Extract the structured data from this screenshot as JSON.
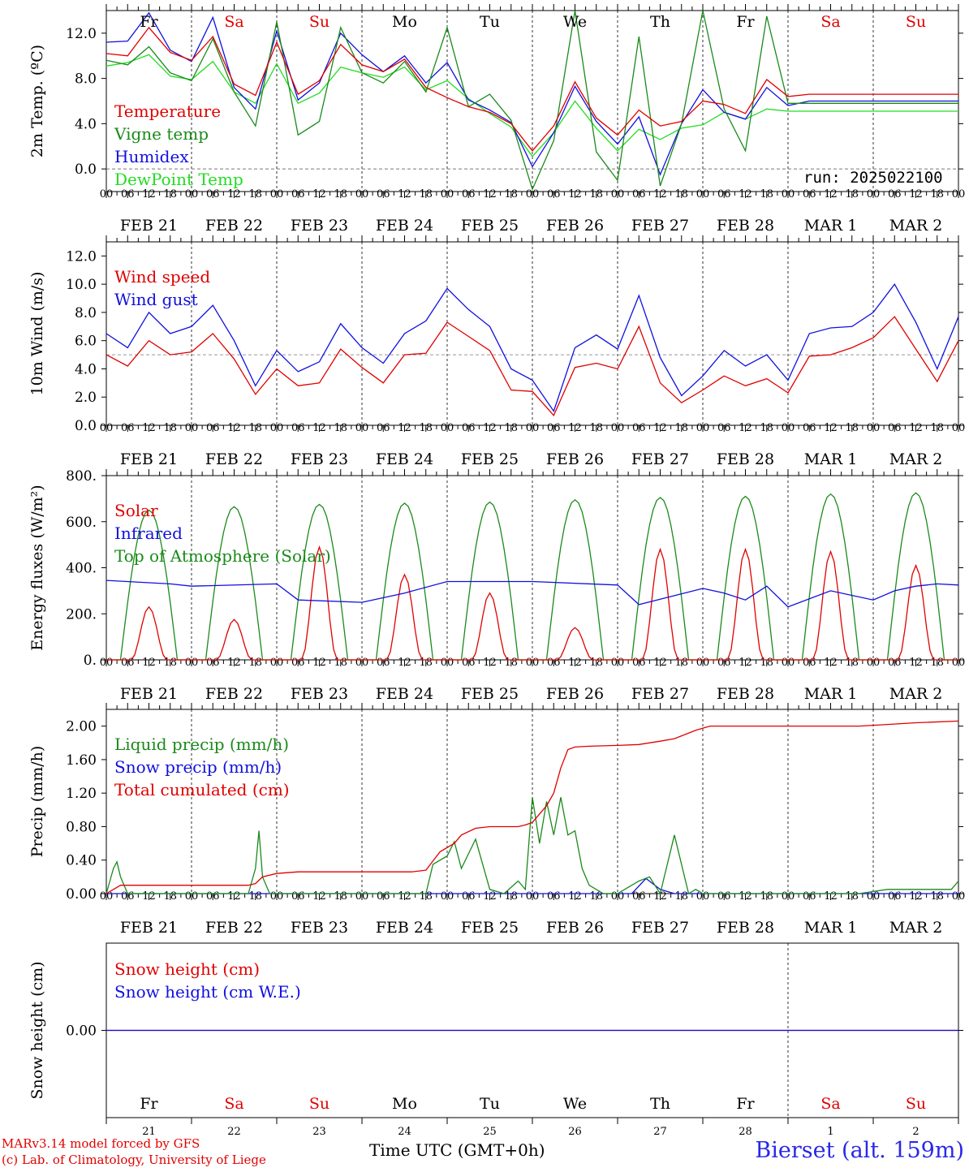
{
  "run_label": "run: 2025022100",
  "credit_line1": "MARv3.14 model forced by GFS",
  "credit_line2": "(c) Lab. of Climatology, University of Liege",
  "station": "Bierset (alt. 159m)",
  "x_axis_title": "Time UTC (GMT+0h)",
  "colors": {
    "red": "#e00000",
    "green": "#1a8a1a",
    "blue": "#1010e0",
    "lightgreen": "#22dd22",
    "grid": "#000000"
  },
  "hour_ticks": [
    "00",
    "06",
    "12",
    "18"
  ],
  "dates": [
    "FEB 21",
    "FEB 22",
    "FEB 23",
    "FEB 24",
    "FEB 25",
    "FEB 26",
    "FEB 27",
    "FEB 28",
    "MAR  1",
    "MAR  2"
  ],
  "weekdays": [
    {
      "label": "Fr",
      "color": "#000000"
    },
    {
      "label": "Sa",
      "color": "#e00000"
    },
    {
      "label": "Su",
      "color": "#e00000"
    },
    {
      "label": "Mo",
      "color": "#000000"
    },
    {
      "label": "Tu",
      "color": "#000000"
    },
    {
      "label": "We",
      "color": "#000000"
    },
    {
      "label": "Th",
      "color": "#000000"
    },
    {
      "label": "Fr",
      "color": "#000000"
    },
    {
      "label": "Sa",
      "color": "#e00000"
    },
    {
      "label": "Su",
      "color": "#e00000"
    }
  ],
  "day_numbers": [
    "21",
    "22",
    "23",
    "24",
    "25",
    "26",
    "27",
    "28",
    "1",
    "2"
  ],
  "chart_data": [
    {
      "id": "temp",
      "type": "line",
      "ylabel": "2m Temp. (ºC)",
      "ylim": [
        -2,
        14
      ],
      "ticks": [
        {
          "v": 0,
          "l": "0.0"
        },
        {
          "v": 4,
          "l": "4.0"
        },
        {
          "v": 8,
          "l": "8.0"
        },
        {
          "v": 12,
          "l": "12.0"
        }
      ],
      "ref_line": 0,
      "x_hours": [
        0,
        6,
        12,
        18,
        24,
        30,
        36,
        42,
        48,
        54,
        60,
        66,
        72,
        78,
        84,
        90,
        96,
        102,
        108,
        114,
        120,
        126,
        132,
        138,
        144,
        150,
        156,
        162,
        168,
        174,
        180,
        186,
        192,
        198,
        204,
        210,
        216,
        222,
        228,
        234,
        240
      ],
      "series": [
        {
          "name": "Temperature",
          "color": "#e00000",
          "values": [
            10.2,
            10.0,
            12.5,
            10.3,
            9.6,
            11.7,
            7.5,
            6.5,
            11.2,
            6.6,
            7.8,
            11.0,
            9.2,
            8.6,
            9.7,
            7.2,
            6.3,
            5.5,
            5.0,
            4.0,
            1.6,
            3.8,
            7.7,
            4.5,
            3.0,
            5.2,
            3.8,
            4.2,
            6.0,
            5.7,
            4.9,
            7.9,
            6.4,
            6.6,
            6.6,
            6.6,
            6.6,
            6.6,
            6.6,
            6.6,
            6.6
          ]
        },
        {
          "name": "Vigne temp",
          "color": "#1a8a1a",
          "values": [
            9.6,
            9.2,
            10.8,
            8.5,
            7.8,
            11.5,
            6.8,
            3.8,
            13.0,
            3.0,
            4.2,
            12.5,
            8.5,
            7.6,
            9.5,
            6.8,
            12.5,
            5.5,
            6.6,
            4.3,
            -1.8,
            2.5,
            14.0,
            1.5,
            -1.0,
            11.7,
            -1.5,
            4.0,
            14.0,
            5.3,
            1.6,
            13.5,
            5.8,
            5.8,
            5.8,
            5.8,
            5.8,
            5.8,
            5.8,
            5.8,
            5.8
          ]
        },
        {
          "name": "Humidex",
          "color": "#1010e0",
          "values": [
            11.2,
            11.3,
            13.8,
            10.5,
            9.5,
            13.4,
            7.2,
            5.3,
            12.2,
            6.1,
            7.6,
            12.0,
            10.1,
            8.6,
            10.0,
            7.6,
            9.4,
            6.1,
            5.2,
            4.1,
            0.2,
            3.2,
            7.3,
            4.2,
            2.2,
            4.6,
            -0.5,
            4.0,
            7.0,
            5.0,
            4.4,
            7.2,
            5.6,
            6.0,
            6.0,
            6.0,
            6.0,
            6.0,
            6.0,
            6.0,
            6.0
          ]
        },
        {
          "name": "DewPoint Temp",
          "color": "#22dd22",
          "values": [
            9.1,
            9.4,
            10.1,
            8.2,
            7.9,
            9.5,
            6.8,
            5.8,
            9.3,
            5.8,
            6.7,
            9.0,
            8.5,
            8.1,
            9.0,
            7.0,
            7.8,
            6.2,
            4.9,
            3.7,
            1.1,
            3.2,
            6.0,
            3.6,
            1.6,
            3.5,
            2.6,
            3.6,
            3.9,
            5.0,
            4.4,
            5.3,
            5.1,
            5.1,
            5.1,
            5.1,
            5.1,
            5.1,
            5.1,
            5.1,
            5.1
          ]
        }
      ]
    },
    {
      "id": "wind",
      "type": "line",
      "ylabel": "10m Wind (m/s)",
      "ylim": [
        0,
        13
      ],
      "ticks": [
        {
          "v": 0,
          "l": "0.0"
        },
        {
          "v": 2,
          "l": "2.0"
        },
        {
          "v": 4,
          "l": "4.0"
        },
        {
          "v": 6,
          "l": "6.0"
        },
        {
          "v": 8,
          "l": "8.0"
        },
        {
          "v": 10,
          "l": "10.0"
        },
        {
          "v": 12,
          "l": "12.0"
        }
      ],
      "ref_line": 5,
      "x_hours": [
        0,
        6,
        12,
        18,
        24,
        30,
        36,
        42,
        48,
        54,
        60,
        66,
        72,
        78,
        84,
        90,
        96,
        102,
        108,
        114,
        120,
        126,
        132,
        138,
        144,
        150,
        156,
        162,
        168,
        174,
        180,
        186,
        192,
        198,
        204,
        210,
        216,
        222,
        228,
        234,
        240
      ],
      "series": [
        {
          "name": "Wind speed",
          "color": "#e00000",
          "values": [
            5.0,
            4.2,
            6.0,
            5.0,
            5.2,
            6.5,
            4.7,
            2.2,
            4.0,
            2.8,
            3.0,
            5.4,
            4.1,
            3.0,
            5.0,
            5.1,
            7.3,
            6.3,
            5.3,
            2.5,
            2.4,
            0.7,
            4.1,
            4.4,
            4.0,
            7.0,
            3.0,
            1.6,
            2.5,
            3.5,
            2.8,
            3.3,
            2.3,
            4.9,
            5.0,
            5.5,
            6.2,
            7.7,
            5.4,
            3.1,
            6.0
          ]
        },
        {
          "name": "Wind gust",
          "color": "#1010e0",
          "values": [
            6.5,
            5.5,
            8.0,
            6.5,
            7.0,
            8.5,
            6.0,
            2.8,
            5.3,
            3.8,
            4.5,
            7.2,
            5.5,
            4.4,
            6.5,
            7.4,
            9.7,
            8.2,
            7.0,
            4.0,
            3.2,
            1.0,
            5.5,
            6.4,
            5.4,
            9.2,
            4.8,
            2.1,
            3.5,
            5.3,
            4.2,
            5.0,
            3.2,
            6.5,
            6.9,
            7.0,
            8.0,
            10.0,
            7.3,
            4.0,
            7.7
          ]
        }
      ]
    },
    {
      "id": "flux",
      "type": "line",
      "ylabel": "Energy fluxes (W/m²)",
      "ylim": [
        0,
        800
      ],
      "ticks": [
        {
          "v": 0,
          "l": "0."
        },
        {
          "v": 200,
          "l": "200."
        },
        {
          "v": 400,
          "l": "400."
        },
        {
          "v": 600,
          "l": "600."
        },
        {
          "v": 800,
          "l": "800."
        }
      ],
      "solar_peaks": [
        230,
        175,
        490,
        370,
        290,
        140,
        480,
        480,
        470,
        410
      ],
      "toa_peaks": [
        650,
        665,
        675,
        680,
        685,
        695,
        705,
        710,
        720,
        725
      ],
      "infrared_hours": [
        0,
        18,
        24,
        48,
        54,
        72,
        84,
        96,
        120,
        144,
        150,
        168,
        174,
        180,
        186,
        192,
        204,
        216,
        222,
        228,
        234,
        240
      ],
      "infrared_values": [
        345,
        330,
        320,
        330,
        260,
        250,
        290,
        340,
        340,
        325,
        240,
        310,
        290,
        260,
        320,
        230,
        300,
        260,
        300,
        320,
        330,
        325
      ],
      "series": [
        {
          "name": "Solar",
          "color": "#e00000"
        },
        {
          "name": "Infrared",
          "color": "#1010e0"
        },
        {
          "name": "Top of Atmosphere (Solar)",
          "color": "#1a8a1a"
        }
      ]
    },
    {
      "id": "precip",
      "type": "line",
      "ylabel": "Precip (mm/h)",
      "ylim": [
        0,
        2.2
      ],
      "ticks": [
        {
          "v": 0,
          "l": "0.00"
        },
        {
          "v": 0.4,
          "l": "0.40"
        },
        {
          "v": 0.8,
          "l": "0.80"
        },
        {
          "v": 1.2,
          "l": "1.20"
        },
        {
          "v": 1.6,
          "l": "1.60"
        },
        {
          "v": 2.0,
          "l": "2.00"
        }
      ],
      "liquid_hours": [
        0,
        2,
        3,
        4,
        6,
        40,
        42,
        43,
        44,
        46,
        48,
        90,
        92,
        96,
        98,
        100,
        104,
        108,
        112,
        116,
        118,
        120,
        122,
        124,
        126,
        128,
        130,
        132,
        134,
        136,
        140,
        144,
        150,
        153,
        156,
        160,
        164,
        166,
        168,
        170,
        190,
        212,
        220,
        238,
        240
      ],
      "liquid_values": [
        0,
        0.3,
        0.38,
        0.2,
        0,
        0,
        0.3,
        0.75,
        0.2,
        0,
        0,
        0,
        0.35,
        0.45,
        0.62,
        0.3,
        0.65,
        0.05,
        0,
        0.15,
        0.05,
        1.15,
        0.6,
        1.1,
        0.7,
        1.15,
        0.7,
        0.75,
        0.3,
        0.1,
        0,
        0,
        0.15,
        0.2,
        0,
        0.7,
        0,
        0.05,
        0,
        0,
        0,
        0,
        0.05,
        0.05,
        0.15
      ],
      "snow_hours": [
        0,
        148,
        152,
        156,
        160,
        240
      ],
      "snow_values": [
        0,
        0,
        0.18,
        0.05,
        0,
        0
      ],
      "cum_hours": [
        0,
        2,
        4,
        40,
        42,
        44,
        48,
        54,
        72,
        78,
        86,
        90,
        94,
        98,
        100,
        104,
        108,
        116,
        118,
        120,
        124,
        126,
        128,
        130,
        132,
        136,
        144,
        150,
        156,
        160,
        166,
        170,
        174,
        180,
        192,
        204,
        212,
        220,
        228,
        240
      ],
      "cum_values": [
        0,
        0.05,
        0.1,
        0.1,
        0.12,
        0.2,
        0.24,
        0.26,
        0.26,
        0.26,
        0.26,
        0.28,
        0.5,
        0.6,
        0.7,
        0.78,
        0.8,
        0.8,
        0.82,
        0.85,
        1.05,
        1.2,
        1.5,
        1.72,
        1.75,
        1.76,
        1.77,
        1.78,
        1.82,
        1.85,
        1.95,
        2.0,
        2.0,
        2.0,
        2.0,
        2.0,
        2.0,
        2.02,
        2.04,
        2.06
      ],
      "series": [
        {
          "name": "Liquid precip (mm/h)",
          "color": "#1a8a1a"
        },
        {
          "name": "Snow precip (mm/h)",
          "color": "#1010e0"
        },
        {
          "name": "Total cumulated (cm)",
          "color": "#e00000"
        }
      ]
    },
    {
      "id": "snow",
      "type": "line",
      "ylabel": "Snow height (cm)",
      "ylim": [
        -1,
        1
      ],
      "ticks": [
        {
          "v": 0,
          "l": "0.00"
        }
      ],
      "x_hours": [
        0,
        240
      ],
      "series": [
        {
          "name": "Snow height (cm)",
          "color": "#e00000",
          "values": [
            0,
            0
          ]
        },
        {
          "name": "Snow height (cm W.E.)",
          "color": "#1010e0",
          "values": [
            0,
            0
          ]
        }
      ]
    }
  ]
}
